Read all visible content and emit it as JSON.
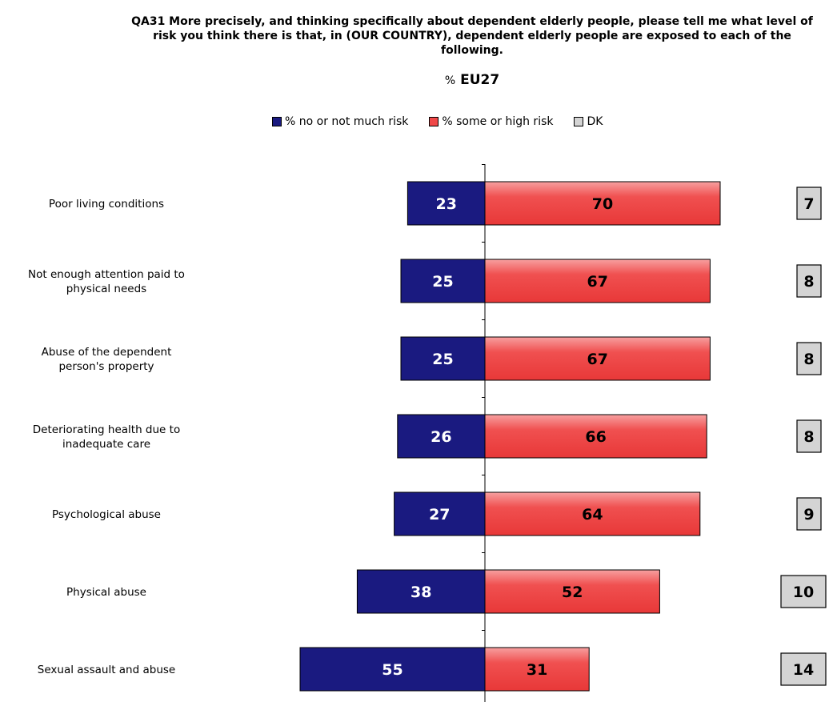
{
  "title": "QA31 More precisely, and thinking specifically about dependent elderly people, please tell me what level of risk you think there is that, in (OUR COUNTRY), dependent elderly people are exposed to each of the following.",
  "subtitle_prefix": "%",
  "subtitle": "EU27",
  "legend": [
    {
      "label": "% no or not much risk",
      "color": "#1a1a80"
    },
    {
      "label": "% some or high risk",
      "color": "#f04848"
    },
    {
      "label": "DK",
      "color": "#d4d4d4"
    }
  ],
  "chart_data": {
    "type": "bar",
    "orientation": "horizontal-diverging",
    "title": "QA31 More precisely, and thinking specifically about dependent elderly people, please tell me what level of risk you think there is that, in (OUR COUNTRY), dependent elderly people are exposed to each of the following.",
    "subtitle": "% EU27",
    "categories": [
      [
        "Poor living conditions"
      ],
      [
        "Not enough attention paid to",
        "physical needs"
      ],
      [
        "Abuse of the dependent",
        "person's property"
      ],
      [
        "Deteriorating health due to",
        "inadequate care"
      ],
      [
        "Psychological abuse"
      ],
      [
        "Physical abuse"
      ],
      [
        "Sexual assault and abuse"
      ]
    ],
    "series": [
      {
        "name": "% no or not much risk",
        "color": "#1a1a80",
        "values": [
          23,
          25,
          25,
          26,
          27,
          38,
          55
        ]
      },
      {
        "name": "% some or high risk",
        "color": "#f04848",
        "values": [
          70,
          67,
          67,
          66,
          64,
          52,
          31
        ]
      },
      {
        "name": "DK",
        "color": "#d4d4d4",
        "values": [
          7,
          8,
          8,
          8,
          9,
          10,
          14
        ]
      }
    ],
    "legend_position": "top",
    "grid": false
  }
}
